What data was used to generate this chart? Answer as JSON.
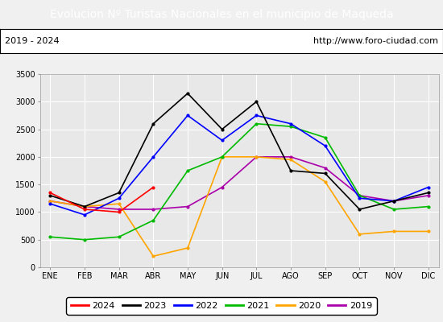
{
  "title": "Evolucion Nº Turistas Nacionales en el municipio de Maqueda",
  "title_color": "#ffffff",
  "title_bg": "#4472c4",
  "subtitle_left": "2019 - 2024",
  "subtitle_right": "http://www.foro-ciudad.com",
  "months": [
    "ENE",
    "FEB",
    "MAR",
    "ABR",
    "MAY",
    "JUN",
    "JUL",
    "AGO",
    "SEP",
    "OCT",
    "NOV",
    "DIC"
  ],
  "ylim": [
    0,
    3500
  ],
  "yticks": [
    0,
    500,
    1000,
    1500,
    2000,
    2500,
    3000,
    3500
  ],
  "series": {
    "2024": {
      "color": "#ff0000",
      "data": [
        1350,
        1050,
        1000,
        1450,
        null,
        null,
        null,
        null,
        null,
        null,
        null,
        null
      ]
    },
    "2023": {
      "color": "#000000",
      "data": [
        1300,
        1100,
        1350,
        2600,
        3150,
        2500,
        3000,
        1750,
        1700,
        1050,
        1200,
        1350
      ]
    },
    "2022": {
      "color": "#0000ff",
      "data": [
        1150,
        950,
        1250,
        2000,
        2750,
        2300,
        2750,
        2600,
        2200,
        1250,
        1200,
        1450
      ]
    },
    "2021": {
      "color": "#00bb00",
      "data": [
        550,
        500,
        550,
        850,
        1750,
        2000,
        2600,
        2550,
        2350,
        1300,
        1050,
        1100
      ]
    },
    "2020": {
      "color": "#ffa500",
      "data": [
        1200,
        1100,
        1150,
        200,
        350,
        2000,
        2000,
        1950,
        1550,
        600,
        650,
        650
      ]
    },
    "2019": {
      "color": "#aa00aa",
      "data": [
        1200,
        1100,
        1050,
        1050,
        1100,
        1450,
        2000,
        2000,
        1800,
        1300,
        1200,
        1300
      ]
    }
  },
  "legend_order": [
    "2024",
    "2023",
    "2022",
    "2021",
    "2020",
    "2019"
  ],
  "bg_color": "#f0f0f0",
  "plot_bg_color": "#e8e8e8",
  "grid_color": "#ffffff",
  "title_fontsize": 10,
  "subtitle_fontsize": 8,
  "axis_fontsize": 7,
  "legend_fontsize": 8
}
